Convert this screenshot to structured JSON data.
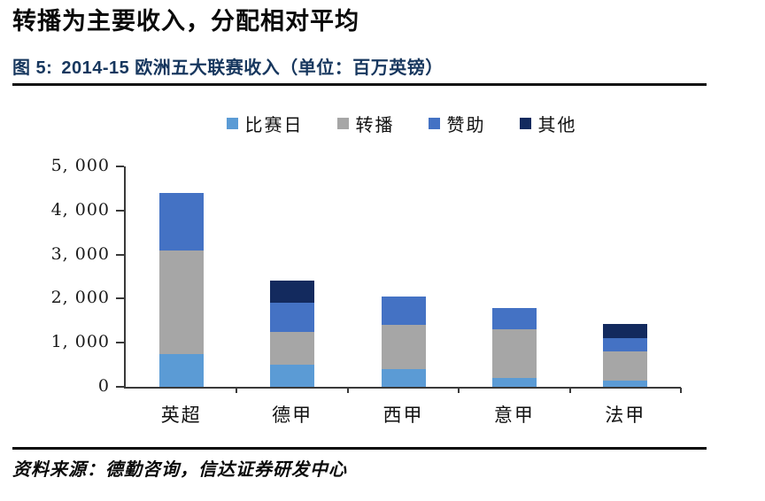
{
  "header": {
    "title": "转播为主要收入，分配相对平均"
  },
  "figure": {
    "label": "图 5:",
    "title": "2014-15 欧洲五大联赛收入（单位：百万英镑）"
  },
  "footer": {
    "source": "资料来源：德勤咨询，信达证券研发中心"
  },
  "chart_data": {
    "type": "bar",
    "subtype": "stacked",
    "title": "2014-15 欧洲五大联赛收入（单位：百万英镑）",
    "categories": [
      "英超",
      "德甲",
      "西甲",
      "意甲",
      "法甲"
    ],
    "series": [
      {
        "name": "比赛日",
        "color": "#5b9bd5",
        "values": [
          750,
          500,
          400,
          200,
          150
        ]
      },
      {
        "name": "转播",
        "color": "#a6a6a6",
        "values": [
          2350,
          750,
          1000,
          1100,
          650
        ]
      },
      {
        "name": "赞助",
        "color": "#4472c4",
        "values": [
          1300,
          650,
          650,
          480,
          300
        ]
      },
      {
        "name": "其他",
        "color": "#132a5e",
        "values": [
          0,
          500,
          0,
          0,
          330
        ]
      }
    ],
    "totals": [
      4400,
      2400,
      2050,
      1780,
      1430
    ],
    "ylim": [
      0,
      5000
    ],
    "ytick_step": 1000,
    "ytick_labels": [
      "0",
      "1, 000",
      "2, 000",
      "3, 000",
      "4, 000",
      "5, 000"
    ],
    "legend_position": "top",
    "grid": false,
    "axis_color": "#3a3a3a"
  }
}
